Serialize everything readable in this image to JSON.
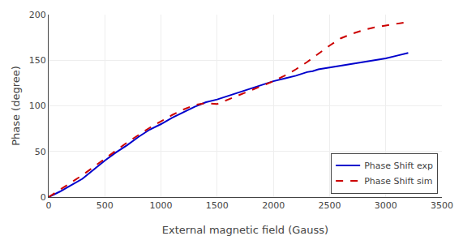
{
  "chart_data": {
    "type": "line",
    "xlabel": "External magnetic field (Gauss)",
    "ylabel": "Phase (degree)",
    "xlim": [
      0,
      3500
    ],
    "ylim": [
      0,
      200
    ],
    "xticks": [
      0,
      500,
      1000,
      1500,
      2000,
      2500,
      3000,
      3500
    ],
    "yticks": [
      0,
      50,
      100,
      150,
      200
    ],
    "grid": true,
    "legend": "lower right",
    "series": [
      {
        "name": "Phase Shift exp",
        "color": "#0000cc",
        "line_style": "solid",
        "x": [
          0,
          50,
          100,
          200,
          300,
          400,
          500,
          600,
          700,
          800,
          900,
          1000,
          1100,
          1200,
          1300,
          1400,
          1500,
          1600,
          1700,
          1800,
          1900,
          2000,
          2100,
          2200,
          2300,
          2350,
          2400,
          2500,
          2600,
          2700,
          2800,
          2900,
          3000,
          3100,
          3200
        ],
        "values": [
          0,
          3,
          6,
          13,
          20,
          30,
          40,
          49,
          57,
          66,
          74,
          80,
          87,
          93,
          99,
          104,
          107,
          111,
          115,
          119,
          123,
          127,
          130,
          133,
          137,
          138,
          140,
          142,
          144,
          146,
          148,
          150,
          152,
          155,
          158
        ]
      },
      {
        "name": "Phase Shift sim",
        "color": "#cc0000",
        "line_style": "dashed",
        "x": [
          0,
          50,
          100,
          200,
          300,
          400,
          500,
          600,
          700,
          800,
          900,
          1000,
          1100,
          1200,
          1300,
          1400,
          1500,
          1600,
          1700,
          1800,
          1900,
          2000,
          2100,
          2200,
          2300,
          2400,
          2500,
          2600,
          2700,
          2800,
          2900,
          3000,
          3100,
          3200
        ],
        "values": [
          0,
          4,
          8,
          16,
          24,
          33,
          42,
          51,
          60,
          68,
          76,
          83,
          90,
          96,
          101,
          103,
          102,
          107,
          112,
          117,
          122,
          127,
          133,
          140,
          148,
          157,
          166,
          174,
          179,
          183,
          186,
          188,
          190,
          192
        ]
      }
    ]
  }
}
